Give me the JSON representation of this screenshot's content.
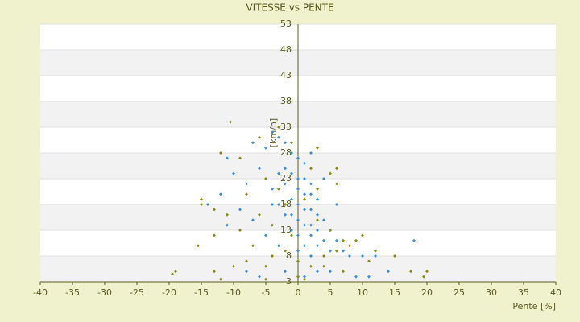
{
  "chart_data": {
    "type": "scatter",
    "title": "VITESSE vs PENTE",
    "x_label": "Pente [%]",
    "y_label": "[km/h]",
    "xlim": [
      -40,
      40
    ],
    "xticks": [
      -40,
      -35,
      -30,
      -25,
      -20,
      -15,
      -10,
      -5,
      0,
      5,
      10,
      15,
      20,
      25,
      30,
      35,
      40
    ],
    "ylim": [
      3,
      53
    ],
    "yticks": [
      3,
      8,
      13,
      18,
      23,
      28,
      33,
      38,
      43,
      48,
      53
    ],
    "grid": true,
    "series": [
      {
        "color": "#3a8fd8",
        "x": [
          -4,
          -3,
          -2,
          -5,
          -1,
          0,
          1,
          -2,
          -3,
          -1,
          0,
          1,
          2,
          -2,
          -4,
          0,
          1,
          2,
          3,
          -1,
          -3,
          0,
          1,
          2,
          3,
          -2,
          4,
          0,
          1,
          2,
          3,
          5,
          -1,
          0,
          2,
          4,
          6,
          1,
          3,
          5,
          7,
          8,
          10,
          12,
          18,
          -6,
          -8,
          -10,
          -12,
          -14,
          -9,
          -7,
          -11,
          -5,
          -3,
          -8,
          -6,
          -2,
          0,
          1,
          3,
          5,
          9,
          11,
          14,
          -11,
          -7,
          2,
          4,
          6,
          -4,
          -1,
          0,
          2
        ],
        "values": [
          32,
          31,
          30,
          29,
          28,
          27,
          26,
          25,
          24,
          24,
          23,
          23,
          22,
          22,
          21,
          21,
          20,
          20,
          19,
          19,
          18,
          18,
          17,
          17,
          16,
          16,
          15,
          15,
          14,
          14,
          13,
          13,
          13,
          12,
          12,
          11,
          11,
          10,
          10,
          9,
          9,
          8,
          8,
          8,
          11,
          25,
          22,
          24,
          20,
          18,
          17,
          15,
          14,
          12,
          10,
          5,
          4,
          5,
          4,
          4,
          5,
          5,
          4,
          4,
          5,
          27,
          30,
          28,
          23,
          18,
          18,
          16,
          9,
          8
        ]
      },
      {
        "color": "#8c8c14",
        "x": [
          -10.5,
          -12,
          -9,
          -6,
          -3,
          -1,
          3,
          6,
          5,
          6,
          3,
          -15,
          -15,
          -13,
          -11,
          -13,
          -15.5,
          -19,
          -19.5,
          -13,
          -12,
          -10,
          -8,
          -5,
          -4,
          -2,
          0,
          0,
          2,
          4,
          6,
          8,
          9,
          10,
          12,
          15,
          17.5,
          19.5,
          20,
          -1,
          -4,
          -6,
          -2,
          1,
          3,
          5,
          7,
          11,
          -3,
          -5,
          2,
          -8,
          -9,
          -7,
          -5,
          1,
          4,
          7
        ],
        "values": [
          34,
          28,
          27,
          31,
          33,
          30,
          29,
          25,
          24,
          22,
          21,
          19,
          18,
          17,
          16,
          12,
          10,
          5,
          4.5,
          5,
          3.5,
          6,
          7,
          6,
          8,
          9,
          7,
          4,
          6,
          8,
          9,
          10,
          11,
          12,
          9,
          8,
          5,
          4,
          5,
          12,
          14,
          16,
          18,
          19,
          15,
          13,
          11,
          7,
          21,
          23,
          25,
          20,
          13,
          10,
          3.5,
          3.5,
          6,
          5
        ]
      }
    ]
  }
}
